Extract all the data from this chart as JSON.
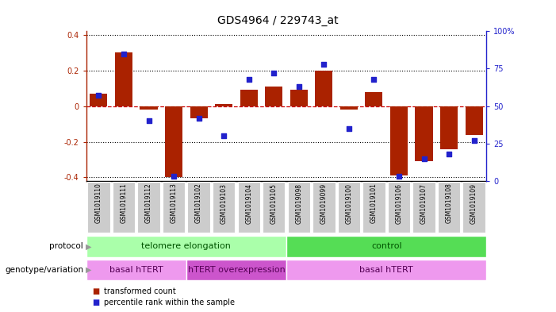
{
  "title": "GDS4964 / 229743_at",
  "samples": [
    "GSM1019110",
    "GSM1019111",
    "GSM1019112",
    "GSM1019113",
    "GSM1019102",
    "GSM1019103",
    "GSM1019104",
    "GSM1019105",
    "GSM1019098",
    "GSM1019099",
    "GSM1019100",
    "GSM1019101",
    "GSM1019106",
    "GSM1019107",
    "GSM1019108",
    "GSM1019109"
  ],
  "bar_values": [
    0.07,
    0.3,
    -0.02,
    -0.4,
    -0.07,
    0.01,
    0.09,
    0.11,
    0.09,
    0.2,
    -0.02,
    0.08,
    -0.39,
    -0.31,
    -0.24,
    -0.16
  ],
  "dot_values": [
    57,
    85,
    40,
    3,
    42,
    30,
    68,
    72,
    63,
    78,
    35,
    68,
    3,
    15,
    18,
    27
  ],
  "ylim": [
    -0.42,
    0.42
  ],
  "yticks_left": [
    -0.4,
    -0.2,
    0.0,
    0.2,
    0.4
  ],
  "yticks_right": [
    0,
    25,
    50,
    75,
    100
  ],
  "bar_color": "#aa2200",
  "dot_color": "#2222cc",
  "zero_line_color": "#cc0000",
  "protocol_groups": [
    {
      "label": "telomere elongation",
      "start": 0,
      "end": 8,
      "color": "#aaffaa"
    },
    {
      "label": "control",
      "start": 8,
      "end": 16,
      "color": "#55dd55"
    }
  ],
  "genotype_groups": [
    {
      "label": "basal hTERT",
      "start": 0,
      "end": 4,
      "color": "#ee99ee"
    },
    {
      "label": "hTERT overexpression",
      "start": 4,
      "end": 8,
      "color": "#cc55cc"
    },
    {
      "label": "basal hTERT",
      "start": 8,
      "end": 16,
      "color": "#ee99ee"
    }
  ],
  "protocol_label": "protocol",
  "genotype_label": "genotype/variation",
  "legend_bar": "transformed count",
  "legend_dot": "percentile rank within the sample",
  "bg_color": "#ffffff",
  "sample_bg": "#cccccc",
  "title_fontsize": 10
}
